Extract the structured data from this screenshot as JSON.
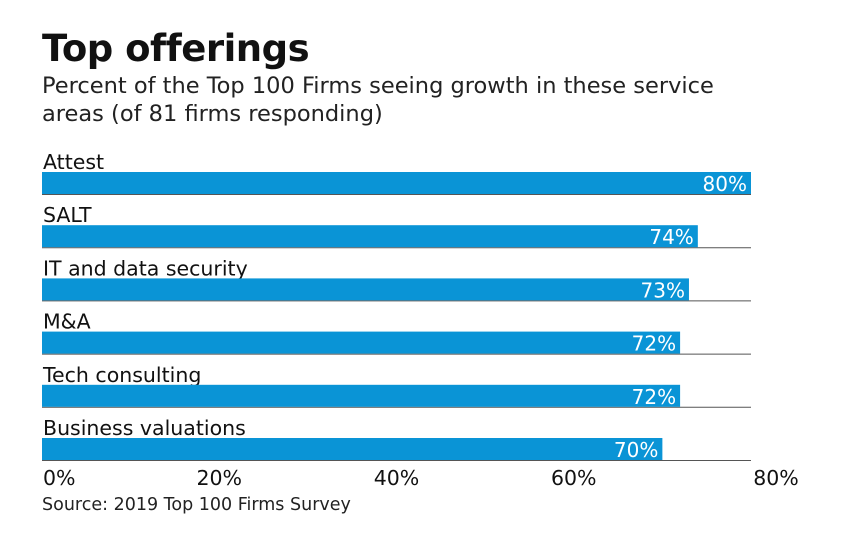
{
  "chart_data": {
    "type": "bar",
    "orientation": "horizontal",
    "title": "Top offerings",
    "subtitle": "Percent of the Top 100 Firms seeing growth in these service areas (of 81 firms responding)",
    "categories": [
      "Attest",
      "SALT",
      "IT and data security",
      "M&A",
      "Tech consulting",
      "Business valuations"
    ],
    "values": [
      80,
      74,
      73,
      72,
      72,
      70
    ],
    "value_labels": [
      "80%",
      "74%",
      "73%",
      "72%",
      "72%",
      "70%"
    ],
    "xlim": [
      0,
      80
    ],
    "xticks": [
      0,
      20,
      40,
      60,
      80
    ],
    "xtick_labels": [
      "0%",
      "20%",
      "40%",
      "60%",
      "80%"
    ],
    "xlabel": "",
    "ylabel": "",
    "bar_color": "#0a94d6",
    "source": "Source: 2019 Top 100 Firms Survey"
  }
}
